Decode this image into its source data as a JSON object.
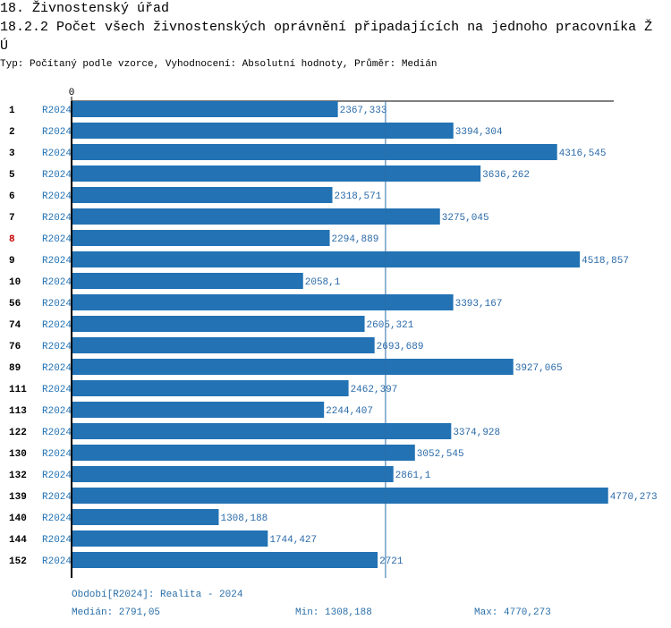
{
  "chart_data": {
    "type": "bar",
    "orientation": "horizontal",
    "section": "18. Živnostenský úřad",
    "title": "18.2.2 Počet všech živnostenských oprávnění připadajících na jednoho pracovníka ŽÚ",
    "subtitle": "Typ: Počítaný podle vzorce, Vyhodnocení: Absolutní hodnoty, Průměr: Medián",
    "categories": [
      "1",
      "2",
      "3",
      "5",
      "6",
      "7",
      "8",
      "9",
      "10",
      "56",
      "74",
      "76",
      "89",
      "111",
      "113",
      "122",
      "130",
      "132",
      "139",
      "140",
      "144",
      "152"
    ],
    "series": [
      {
        "name": "R2024",
        "color": "#2272b4",
        "values": [
          2367.333,
          3394.304,
          4316.545,
          3636.262,
          2318.571,
          3275.045,
          2294.889,
          4518.857,
          2058.1,
          3393.167,
          2605.321,
          2693.689,
          3927.065,
          2462.397,
          2244.407,
          3374.928,
          3052.545,
          2861.1,
          4770.273,
          1308.188,
          1744.427,
          2721
        ],
        "value_labels": [
          "2367,333",
          "3394,304",
          "4316,545",
          "3636,262",
          "2318,571",
          "3275,045",
          "2294,889",
          "4518,857",
          "2058,1",
          "3393,167",
          "2605,321",
          "2693,689",
          "3927,065",
          "2462,397",
          "2244,407",
          "3374,928",
          "3052,545",
          "2861,1",
          "4770,273",
          "1308,188",
          "1744,427",
          "2721"
        ]
      }
    ],
    "xlim": [
      0,
      4820
    ],
    "xticks": [
      0
    ],
    "highlight": {
      "category_index": 6,
      "color": "#cc0000"
    },
    "median": {
      "value": 2791.05,
      "label": "Medián: 2791,05"
    },
    "period": "Období[R2024]: Realita - 2024",
    "min_label": "Min: 1308,188",
    "max_label": "Max: 4770,273"
  }
}
